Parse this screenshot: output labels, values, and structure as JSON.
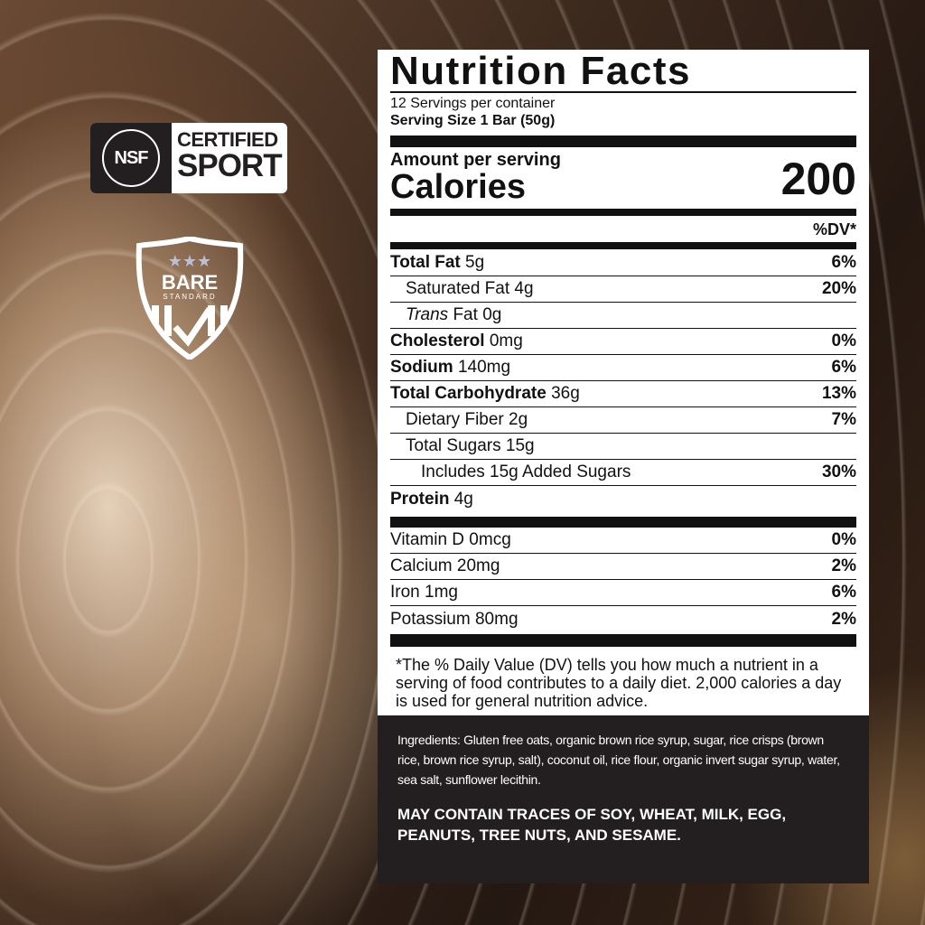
{
  "badges": {
    "nsf": {
      "logo": "NSF",
      "line1": "CERTIFIED",
      "line2": "SPORT"
    },
    "bare": {
      "line1": "BARE",
      "line2": "STANDARD"
    }
  },
  "label": {
    "title": "Nutrition Facts",
    "servings": "12 Servings per container",
    "serving_size": "Serving Size 1 Bar (50g)",
    "amount_per_serving": "Amount per serving",
    "calories_label": "Calories",
    "calories": "200",
    "dv_header": "%DV*",
    "nutrients": [
      {
        "name": "Total Fat",
        "amount": "5g",
        "dv": "6%",
        "bold": true,
        "indent": 0
      },
      {
        "name": "Saturated Fat",
        "amount": "4g",
        "dv": "20%",
        "bold": false,
        "indent": 1
      },
      {
        "name": "Trans",
        "name_suffix": " Fat",
        "amount": "0g",
        "dv": "",
        "bold": false,
        "indent": 1,
        "italic": true
      },
      {
        "name": "Cholesterol",
        "amount": "0mg",
        "dv": "0%",
        "bold": true,
        "indent": 0
      },
      {
        "name": "Sodium",
        "amount": "140mg",
        "dv": "6%",
        "bold": true,
        "indent": 0
      },
      {
        "name": "Total Carbohydrate",
        "amount": "36g",
        "dv": "13%",
        "bold": true,
        "indent": 0
      },
      {
        "name": "Dietary Fiber",
        "amount": "2g",
        "dv": "7%",
        "bold": false,
        "indent": 1
      },
      {
        "name": "Total Sugars",
        "amount": "15g",
        "dv": "",
        "bold": false,
        "indent": 1
      },
      {
        "name": "Includes 15g Added Sugars",
        "amount": "",
        "dv": "30%",
        "bold": false,
        "indent": 2
      },
      {
        "name": "Protein",
        "amount": "4g",
        "dv": "",
        "bold": true,
        "indent": 0
      }
    ],
    "vitamins": [
      {
        "name": "Vitamin D",
        "amount": "0mcg",
        "dv": "0%"
      },
      {
        "name": "Calcium",
        "amount": "20mg",
        "dv": "2%"
      },
      {
        "name": "Iron",
        "amount": "1mg",
        "dv": "6%"
      },
      {
        "name": "Potassium",
        "amount": "80mg",
        "dv": "2%"
      }
    ],
    "footnote": "*The % Daily Value (DV) tells you how much a nutrient in a serving of food contributes to a daily diet. 2,000 calories a day is used for general nutrition advice."
  },
  "ingredients": "Ingredients: Gluten free oats, organic brown rice syrup, sugar, rice crisps (brown rice, brown rice syrup, salt), coconut oil, rice flour, organic invert sugar syrup, water, sea salt, sunflower lecithin.",
  "allergen_warning": "MAY CONTAIN TRACES OF SOY, WHEAT, MILK, EGG, PEANUTS, TREE NUTS, AND SESAME."
}
